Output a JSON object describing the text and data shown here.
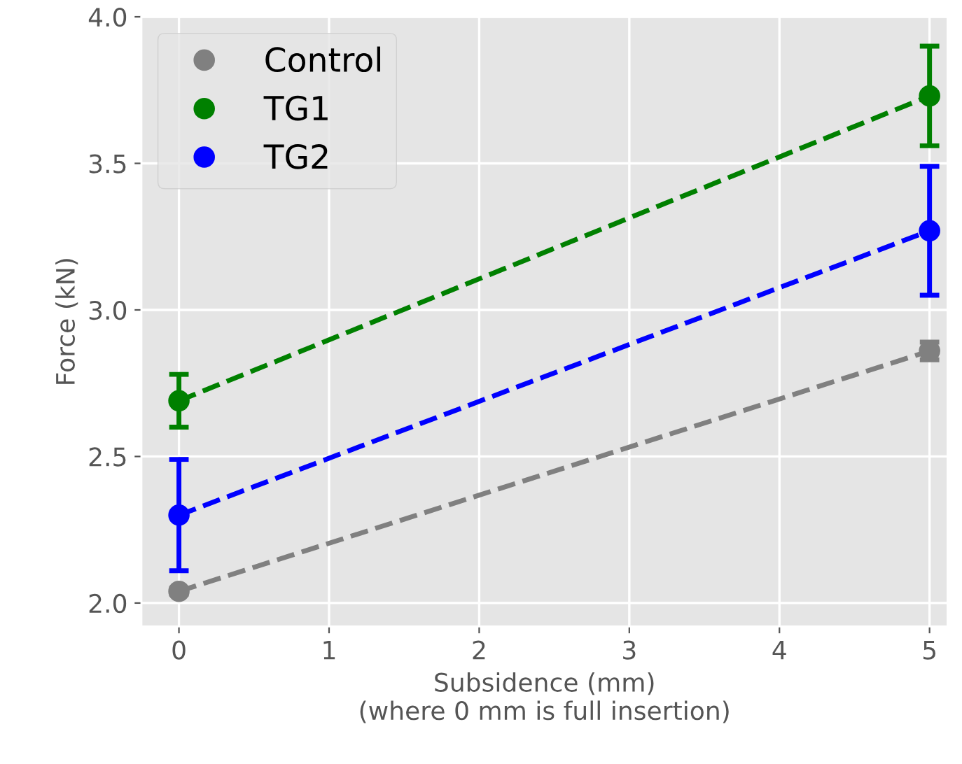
{
  "chart_data": {
    "type": "line",
    "xlabel": "Subsidence (mm)\n(where 0 mm is full insertion)",
    "ylabel": "Force (kN)",
    "x": [
      0,
      5
    ],
    "xlim": [
      -0.25,
      5.12
    ],
    "xticks": [
      0,
      1,
      2,
      3,
      4,
      5
    ],
    "ylim": [
      1.92,
      4.0
    ],
    "yticks": [
      {
        "value": 2,
        "label": "2.0"
      },
      2.5,
      {
        "value": 3,
        "label": "3.0"
      },
      3.5,
      {
        "value": 4,
        "label": "4.0"
      }
    ],
    "grid": true,
    "legend": "top left",
    "marker": "circle",
    "line_style": "dashed",
    "series": [
      {
        "name": "Control",
        "color": "#808080",
        "values": [
          2.04,
          2.86
        ],
        "errors": [
          0.01,
          0.03
        ]
      },
      {
        "name": "TG1",
        "color": "#008000",
        "values": [
          2.69,
          3.73
        ],
        "errors": [
          0.09,
          0.17
        ]
      },
      {
        "name": "TG2",
        "color": "#0000ff",
        "values": [
          2.3,
          3.27
        ],
        "errors": [
          0.19,
          0.22
        ]
      }
    ]
  }
}
